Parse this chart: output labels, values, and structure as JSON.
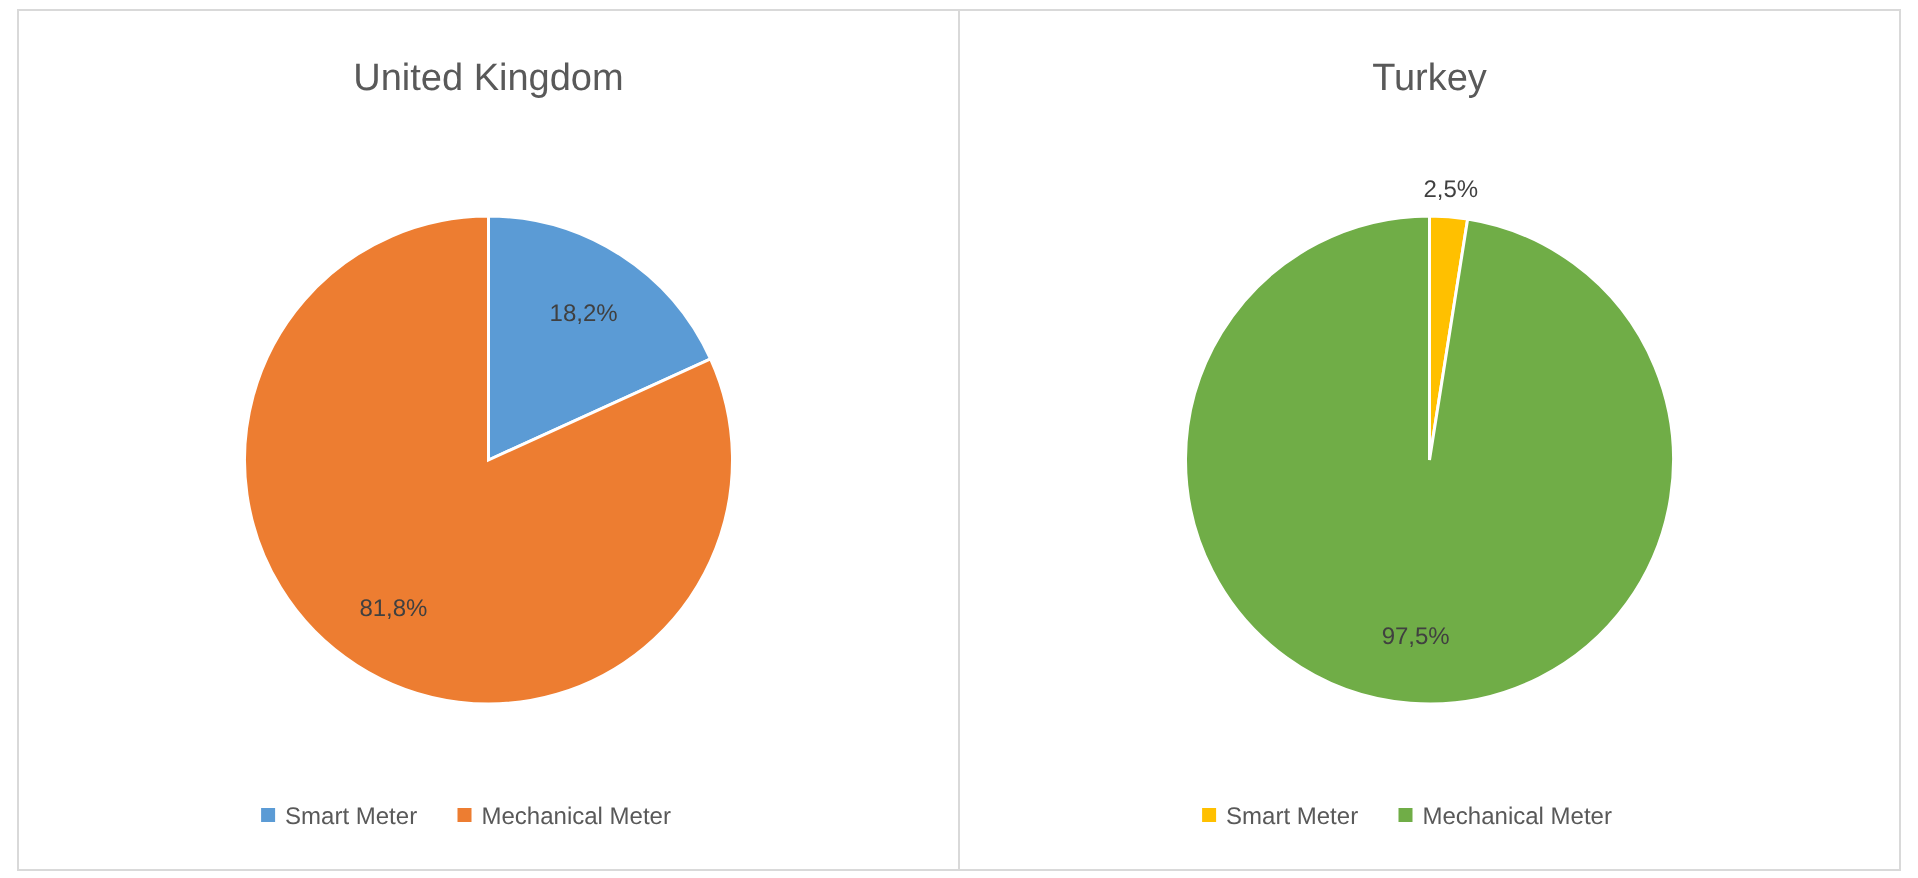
{
  "chart_data": [
    {
      "type": "pie",
      "title": "United Kingdom",
      "categories": [
        "Smart Meter",
        "Mechanical Meter"
      ],
      "values": [
        18.2,
        81.8
      ],
      "colors": [
        "#5b9bd5",
        "#ed7d31"
      ],
      "value_labels": [
        "18,2%",
        "81,8%"
      ],
      "legend": "bottom"
    },
    {
      "type": "pie",
      "title": "Turkey",
      "categories": [
        "Smart Meter",
        "Mechanical Meter"
      ],
      "values": [
        2.5,
        97.5
      ],
      "colors": [
        "#ffc000",
        "#70ad47"
      ],
      "value_labels": [
        "2,5%",
        "97,5%"
      ],
      "legend": "bottom"
    }
  ]
}
